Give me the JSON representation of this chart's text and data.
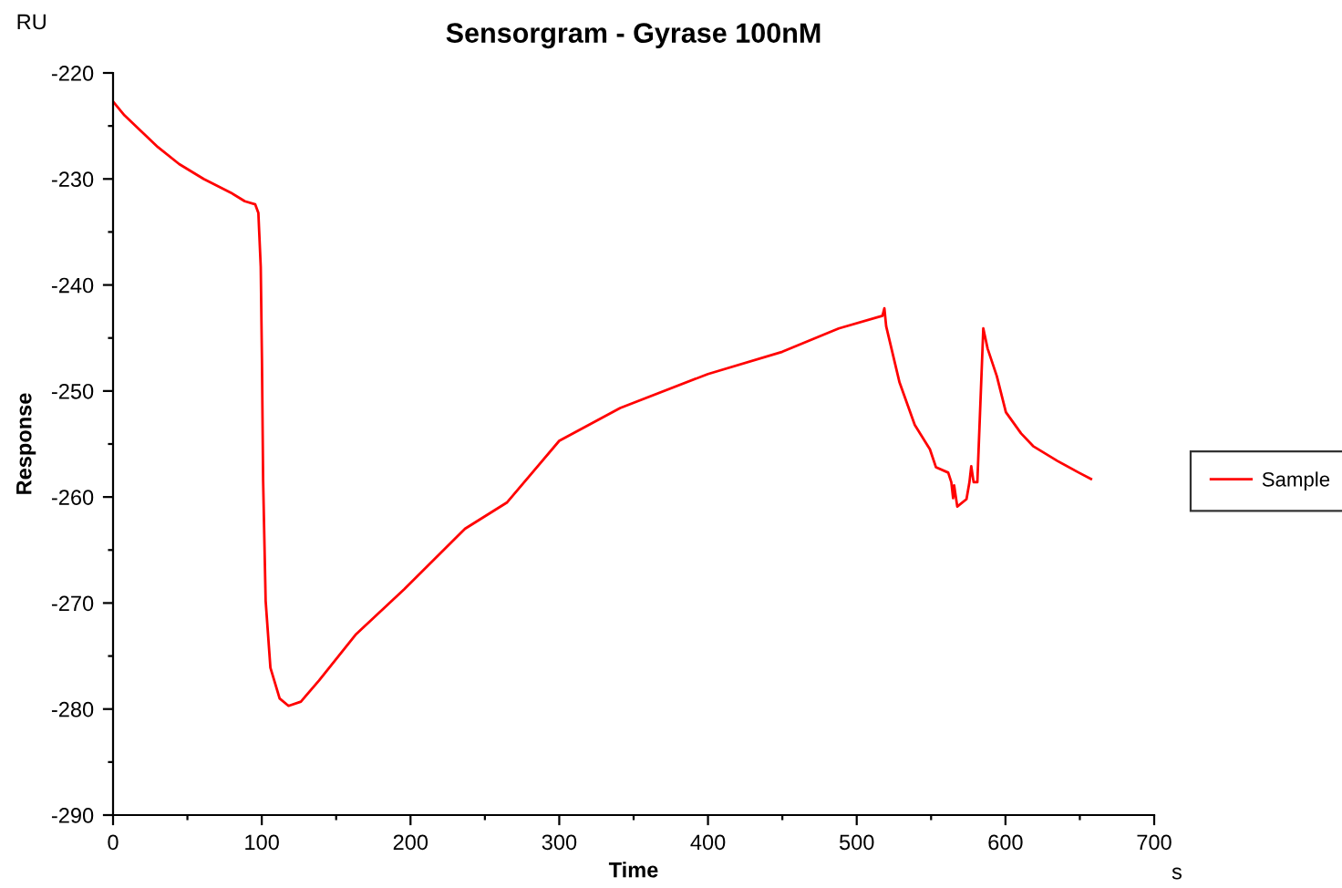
{
  "chart_data": {
    "type": "line",
    "title": "Sensorgram - Gyrase 100nM",
    "xlabel": "Time",
    "ylabel": "Response",
    "annotations": [
      "RU",
      "s"
    ],
    "xlim": [
      0,
      700
    ],
    "ylim": [
      -290,
      -220
    ],
    "xticks": [
      0,
      {
        "value": 50,
        "label": null
      },
      100,
      {
        "value": 150,
        "label": null
      },
      200,
      {
        "value": 250,
        "label": null
      },
      300,
      {
        "value": 350,
        "label": null
      },
      400,
      {
        "value": 450,
        "label": null
      },
      500,
      {
        "value": 550,
        "label": null
      },
      600,
      {
        "value": 650,
        "label": null
      },
      700
    ],
    "yticks": [
      -290,
      {
        "value": -285,
        "label": null
      },
      -280,
      {
        "value": -275,
        "label": null
      },
      -270,
      {
        "value": -265,
        "label": null
      },
      -260,
      {
        "value": -255,
        "label": null
      },
      -250,
      {
        "value": -245,
        "label": null
      },
      -240,
      {
        "value": -235,
        "label": null
      },
      -230,
      {
        "value": -225,
        "label": null
      },
      -220
    ],
    "grid": false,
    "legend": "right",
    "marker": "none",
    "line_style": "solid",
    "series": [
      {
        "name": "Sample",
        "color": "#ff0000",
        "x": [
          0,
          7.7,
          30.2,
          44.5,
          60.9,
          79.3,
          88.6,
          95.6,
          97.7,
          99.3,
          100.1,
          100.9,
          102.6,
          105.8,
          112,
          118,
          126.3,
          138.5,
          163,
          195.8,
          236.6,
          265,
          300,
          341,
          400,
          450,
          487.9,
          517.3,
          518.6,
          519.8,
          528.8,
          539,
          549.2,
          553.3,
          561.5,
          563.6,
          564.8,
          565.5,
          567.6,
          573.8,
          575.8,
          577,
          578.6,
          581.1,
          585.1,
          588,
          594.2,
          600.3,
          610.5,
          618.6,
          635,
          649.3,
          657.5
        ],
        "values": [
          -222.7,
          -224,
          -227,
          -228.6,
          -230,
          -231.3,
          -232.1,
          -232.4,
          -233.2,
          -238.3,
          -246.9,
          -258.4,
          -269.8,
          -276.1,
          -279,
          -279.7,
          -279.3,
          -277.3,
          -273,
          -268.7,
          -263,
          -260.5,
          -254.7,
          -251.6,
          -248.4,
          -246.3,
          -244.1,
          -242.9,
          -242.2,
          -243.9,
          -249.2,
          -253.2,
          -255.5,
          -257.2,
          -257.7,
          -258.6,
          -260.1,
          -258.9,
          -260.9,
          -260.2,
          -258.6,
          -257.1,
          -258.6,
          -258.6,
          -244.1,
          -246,
          -248.6,
          -252,
          -254,
          -255.2,
          -256.6,
          -257.7,
          -258.3
        ]
      }
    ]
  }
}
